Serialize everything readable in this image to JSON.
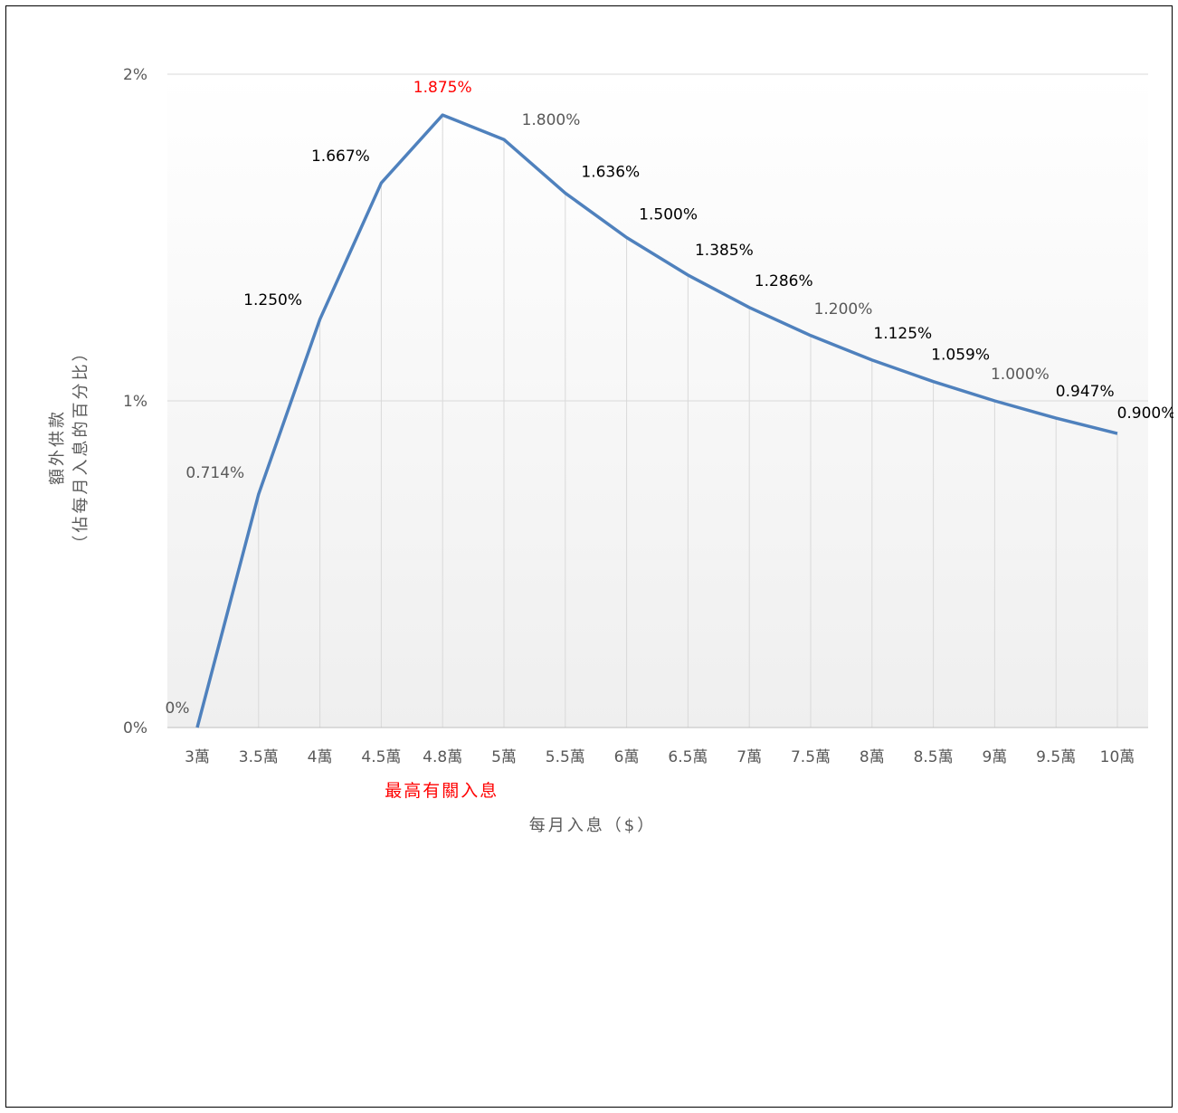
{
  "chart_data": {
    "type": "line",
    "title": "",
    "xlabel": "每月入息（$）",
    "ylabel": "額外供款",
    "ylabel_sub": "（佔每月入息的百分比）",
    "ylim": [
      0,
      2
    ],
    "y_ticks": [
      {
        "value": 0,
        "label": "0%"
      },
      {
        "value": 1,
        "label": "1%"
      },
      {
        "value": 2,
        "label": "2%"
      }
    ],
    "grid": true,
    "legend": "none",
    "categories": [
      "3萬",
      "3.5萬",
      "4萬",
      "4.5萬",
      "4.8萬",
      "5萬",
      "5.5萬",
      "6萬",
      "6.5萬",
      "7萬",
      "7.5萬",
      "8萬",
      "8.5萬",
      "9萬",
      "9.5萬",
      "10萬"
    ],
    "series": [
      {
        "values": [
          0,
          0.714,
          1.25,
          1.667,
          1.875,
          1.8,
          1.636,
          1.5,
          1.385,
          1.286,
          1.2,
          1.125,
          1.059,
          1.0,
          0.947,
          0.9
        ],
        "labels": [
          "0%",
          "0.714%",
          "1.250%",
          "1.667%",
          "1.875%",
          "1.800%",
          "1.636%",
          "1.500%",
          "1.385%",
          "1.286%",
          "1.200%",
          "1.125%",
          "1.059%",
          "1.000%",
          "0.947%",
          "0.900%"
        ]
      }
    ],
    "highlight": {
      "category_index": 4,
      "note": "最高有關入息"
    },
    "colors": {
      "line": "#4f81bd",
      "highlight": "#ff0000",
      "gridline": "#d9d9d9",
      "tick_text": "#595959",
      "label_dark": "#000000",
      "label_gray": "#595959"
    }
  }
}
